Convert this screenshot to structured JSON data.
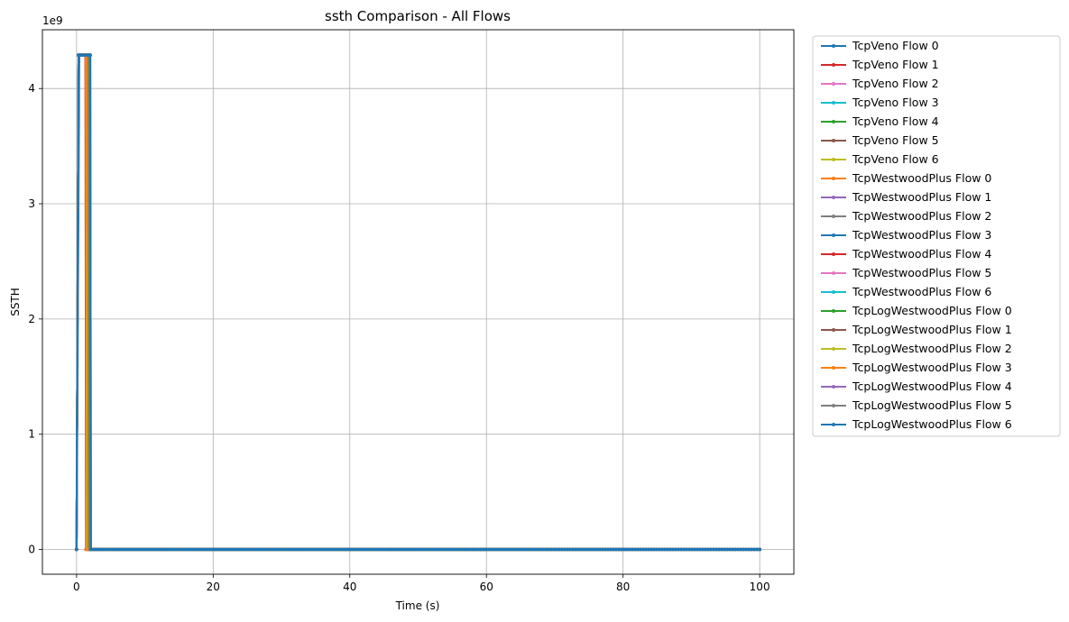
{
  "chart_data": {
    "type": "line",
    "title": "ssth Comparison - All Flows",
    "xlabel": "Time (s)",
    "ylabel": "SSTH",
    "y_scale_label": "1e9",
    "xlim": [
      -5,
      105
    ],
    "ylim": [
      -0.215,
      4.51
    ],
    "xticks": [
      0,
      20,
      40,
      60,
      80,
      100
    ],
    "yticks": [
      0,
      1,
      2,
      3,
      4
    ],
    "grid": true,
    "legend_position": "outside-right",
    "series": [
      {
        "name": "TcpVeno Flow 0",
        "color": "#1f77b4",
        "x": [
          0,
          0.4,
          1.2,
          2.0,
          2.1,
          100
        ],
        "y": [
          0,
          4.29,
          4.29,
          4.29,
          0,
          0
        ]
      },
      {
        "name": "TcpVeno Flow 1",
        "color": "#d62728",
        "x": [
          0,
          0.3,
          1.3,
          1.4,
          100
        ],
        "y": [
          0,
          4.29,
          4.29,
          0,
          0
        ]
      },
      {
        "name": "TcpVeno Flow 2",
        "color": "#e377c2",
        "x": [
          0,
          0.3,
          1.4,
          1.5,
          100
        ],
        "y": [
          0,
          4.29,
          4.29,
          0,
          0
        ]
      },
      {
        "name": "TcpVeno Flow 3",
        "color": "#17becf",
        "x": [
          0,
          0.3,
          1.5,
          1.6,
          100
        ],
        "y": [
          0,
          4.29,
          4.29,
          0,
          0
        ]
      },
      {
        "name": "TcpVeno Flow 4",
        "color": "#2ca02c",
        "x": [
          0,
          0.3,
          1.6,
          1.7,
          100
        ],
        "y": [
          0,
          4.29,
          4.29,
          0,
          0
        ]
      },
      {
        "name": "TcpVeno Flow 5",
        "color": "#8c564b",
        "x": [
          0,
          0.3,
          1.7,
          1.8,
          100
        ],
        "y": [
          0,
          4.29,
          4.29,
          0,
          0
        ]
      },
      {
        "name": "TcpVeno Flow 6",
        "color": "#bcbd22",
        "x": [
          0,
          0.3,
          1.6,
          1.7,
          100
        ],
        "y": [
          0,
          4.29,
          4.29,
          0,
          0
        ]
      },
      {
        "name": "TcpWestwoodPlus Flow 0",
        "color": "#ff7f0e",
        "x": [
          0,
          0.3,
          1.5,
          1.6,
          100
        ],
        "y": [
          0,
          4.29,
          4.29,
          0,
          0
        ]
      },
      {
        "name": "TcpWestwoodPlus Flow 1",
        "color": "#9467bd",
        "x": [
          0,
          0.3,
          1.6,
          1.7,
          100
        ],
        "y": [
          0,
          4.29,
          4.29,
          0,
          0
        ]
      },
      {
        "name": "TcpWestwoodPlus Flow 2",
        "color": "#7f7f7f",
        "x": [
          0,
          0.3,
          1.7,
          1.8,
          100
        ],
        "y": [
          0,
          4.29,
          4.29,
          0,
          0
        ]
      },
      {
        "name": "TcpWestwoodPlus Flow 3",
        "color": "#1f77b4",
        "x": [
          0,
          0.3,
          1.8,
          1.9,
          100
        ],
        "y": [
          0,
          4.29,
          4.29,
          0,
          0
        ]
      },
      {
        "name": "TcpWestwoodPlus Flow 4",
        "color": "#d62728",
        "x": [
          0,
          0.3,
          1.7,
          1.8,
          100
        ],
        "y": [
          0,
          4.29,
          4.29,
          0,
          0
        ]
      },
      {
        "name": "TcpWestwoodPlus Flow 5",
        "color": "#e377c2",
        "x": [
          0,
          0.3,
          1.8,
          1.9,
          100
        ],
        "y": [
          0,
          4.29,
          4.29,
          0,
          0
        ]
      },
      {
        "name": "TcpWestwoodPlus Flow 6",
        "color": "#17becf",
        "x": [
          0,
          0.3,
          1.9,
          2.0,
          100
        ],
        "y": [
          0,
          4.29,
          4.29,
          0,
          0
        ]
      },
      {
        "name": "TcpLogWestwoodPlus Flow 0",
        "color": "#2ca02c",
        "x": [
          0,
          0.3,
          1.8,
          1.9,
          100
        ],
        "y": [
          0,
          4.29,
          4.29,
          0,
          0
        ]
      },
      {
        "name": "TcpLogWestwoodPlus Flow 1",
        "color": "#8c564b",
        "x": [
          0,
          0.3,
          1.9,
          2.0,
          100
        ],
        "y": [
          0,
          4.29,
          4.29,
          0,
          0
        ]
      },
      {
        "name": "TcpLogWestwoodPlus Flow 2",
        "color": "#bcbd22",
        "x": [
          0,
          0.3,
          1.4,
          1.5,
          100
        ],
        "y": [
          0,
          4.29,
          4.29,
          0,
          0
        ]
      },
      {
        "name": "TcpLogWestwoodPlus Flow 3",
        "color": "#ff7f0e",
        "x": [
          0,
          0.3,
          1.5,
          1.6,
          100
        ],
        "y": [
          0,
          4.29,
          4.29,
          0,
          0
        ]
      },
      {
        "name": "TcpLogWestwoodPlus Flow 4",
        "color": "#9467bd",
        "x": [
          0,
          0.3,
          1.9,
          2.0,
          100
        ],
        "y": [
          0,
          4.29,
          4.29,
          0,
          0
        ]
      },
      {
        "name": "TcpLogWestwoodPlus Flow 5",
        "color": "#7f7f7f",
        "x": [
          0,
          0.3,
          1.9,
          2.0,
          100
        ],
        "y": [
          0,
          4.29,
          4.29,
          0,
          0
        ]
      },
      {
        "name": "TcpLogWestwoodPlus Flow 6",
        "color": "#1f77b4",
        "x": [
          0,
          0.3,
          2.0,
          2.1,
          100
        ],
        "y": [
          0,
          4.29,
          4.29,
          0,
          0
        ]
      }
    ]
  }
}
